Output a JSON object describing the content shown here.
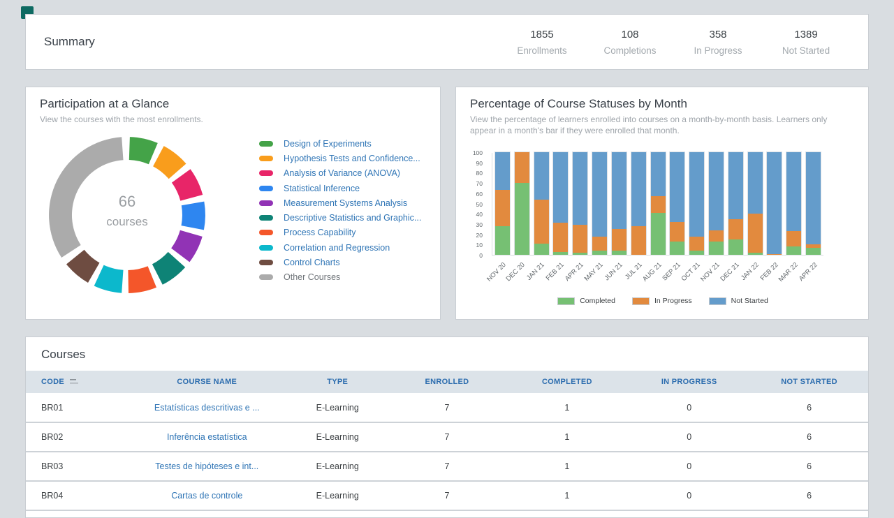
{
  "app": {
    "mark_color": "#0E6A62"
  },
  "summary": {
    "title": "Summary",
    "stats": [
      {
        "value": "1855",
        "label": "Enrollments"
      },
      {
        "value": "108",
        "label": "Completions"
      },
      {
        "value": "358",
        "label": "In Progress"
      },
      {
        "value": "1389",
        "label": "Not Started"
      }
    ]
  },
  "participation": {
    "title": "Participation at a Glance",
    "subtitle": "View the courses with the most enrollments.",
    "center_value": "66",
    "center_label": "courses"
  },
  "statuses": {
    "title": "Percentage of Course Statuses by Month",
    "subtitle": "View the percentage of learners enrolled into courses on a month-by-month basis. Learners only appear in a month's bar if they were enrolled that month."
  },
  "chart_data": [
    {
      "type": "pie",
      "title": "Participation at a Glance",
      "center_text": "66 courses",
      "segments": [
        {
          "label": "Design of Experiments",
          "color": "#44A348",
          "label_color": "#2E74B5",
          "start": 2,
          "end": 23
        },
        {
          "label": "Hypothesis Tests and Confidence...",
          "color": "#F99D1C",
          "label_color": "#2E74B5",
          "start": 28,
          "end": 49
        },
        {
          "label": "Analysis of Variance (ANOVA)",
          "color": "#E82568",
          "label_color": "#2E74B5",
          "start": 54,
          "end": 75
        },
        {
          "label": "Statistical Inference",
          "color": "#2E86F0",
          "label_color": "#2E74B5",
          "start": 80,
          "end": 101
        },
        {
          "label": "Measurement Systems Analysis",
          "color": "#9133B5",
          "label_color": "#2E74B5",
          "start": 106,
          "end": 127
        },
        {
          "label": "Descriptive Statistics and Graphic...",
          "color": "#0E8376",
          "label_color": "#2E74B5",
          "start": 132,
          "end": 153
        },
        {
          "label": "Process Capability",
          "color": "#F4562A",
          "label_color": "#2E74B5",
          "start": 158,
          "end": 179
        },
        {
          "label": "Correlation and Regression",
          "color": "#0CB8CC",
          "label_color": "#2E74B5",
          "start": 184,
          "end": 205
        },
        {
          "label": "Control Charts",
          "color": "#6E4C41",
          "label_color": "#2E74B5",
          "start": 210,
          "end": 231
        },
        {
          "label": "Other Courses",
          "color": "#ABABAB",
          "label_color": "#6F7479",
          "start": 237,
          "end": 356
        }
      ]
    },
    {
      "type": "bar",
      "stacked": true,
      "title": "Percentage of Course Statuses by Month",
      "categories": [
        "NOV 20",
        "DEC 20",
        "JAN 21",
        "FEB 21",
        "APR 21",
        "MAY 21",
        "JUN 21",
        "JUL 21",
        "AUG 21",
        "SEP 21",
        "OCT 21",
        "NOV 21",
        "DEC 21",
        "JAN 22",
        "FEB 22",
        "MAR 22",
        "APR 22"
      ],
      "series": [
        {
          "name": "Completed",
          "color": "#76C073",
          "values": [
            28,
            70,
            11,
            3,
            2,
            4,
            4,
            0,
            41,
            13,
            4,
            13,
            15,
            2,
            0,
            8,
            7
          ]
        },
        {
          "name": "In Progress",
          "color": "#E28A3E",
          "values": [
            35,
            30,
            43,
            28,
            27,
            14,
            21,
            28,
            16,
            19,
            14,
            11,
            20,
            38,
            1,
            15,
            3
          ]
        },
        {
          "name": "Not Started",
          "color": "#649CCB",
          "values": [
            37,
            0,
            46,
            69,
            71,
            82,
            75,
            72,
            43,
            68,
            82,
            76,
            65,
            60,
            99,
            77,
            90
          ]
        }
      ],
      "ylim": [
        0,
        100
      ],
      "yticks": [
        0,
        10,
        20,
        30,
        40,
        50,
        60,
        70,
        80,
        90,
        100
      ],
      "legend_position": "bottom"
    }
  ],
  "courses": {
    "title": "Courses",
    "columns": [
      "CODE",
      "COURSE NAME",
      "TYPE",
      "ENROLLED",
      "COMPLETED",
      "IN PROGRESS",
      "NOT STARTED"
    ],
    "rows": [
      {
        "code": "BR01",
        "name": "Estatísticas descritivas e ...",
        "type": "E-Learning",
        "enrolled": "7",
        "completed": "1",
        "in_progress": "0",
        "not_started": "6"
      },
      {
        "code": "BR02",
        "name": "Inferência estatística",
        "type": "E-Learning",
        "enrolled": "7",
        "completed": "1",
        "in_progress": "0",
        "not_started": "6"
      },
      {
        "code": "BR03",
        "name": "Testes de hipóteses e int...",
        "type": "E-Learning",
        "enrolled": "7",
        "completed": "1",
        "in_progress": "0",
        "not_started": "6"
      },
      {
        "code": "BR04",
        "name": "Cartas de controle",
        "type": "E-Learning",
        "enrolled": "7",
        "completed": "1",
        "in_progress": "0",
        "not_started": "6"
      }
    ]
  }
}
